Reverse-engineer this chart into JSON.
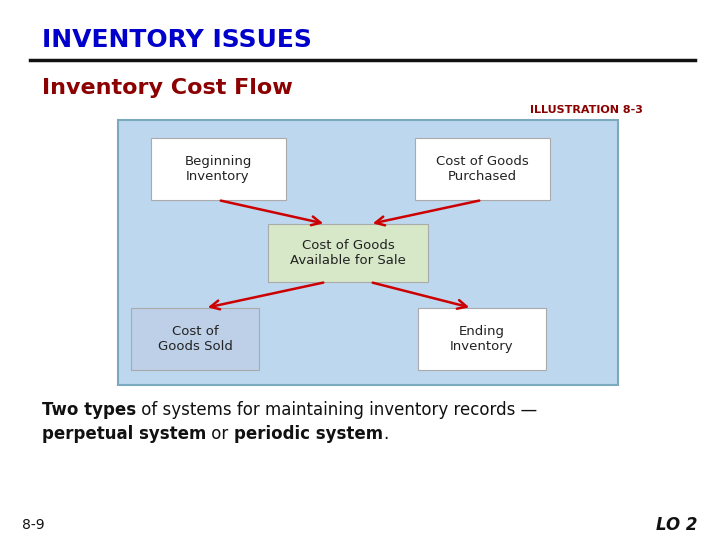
{
  "title": "INVENTORY ISSUES",
  "title_color": "#0000CC",
  "subtitle": "Inventory Cost Flow",
  "subtitle_color": "#8B0000",
  "illustration_label": "ILLUSTRATION 8-3",
  "illustration_color": "#8B0000",
  "bg_color": "#FFFFFF",
  "diagram_bg": "#BDD7EE",
  "diagram_border": "#7BAABF",
  "box_top_left_label": "Beginning\nInventory",
  "box_top_right_label": "Cost of Goods\nPurchased",
  "box_center_label": "Cost of Goods\nAvailable for Sale",
  "box_bot_left_label": "Cost of\nGoods Sold",
  "box_bot_right_label": "Ending\nInventory",
  "box_white_color": "#FFFFFF",
  "box_center_color": "#D6E8C8",
  "box_blue_color": "#BDD0E8",
  "box_border_color": "#AAAAAA",
  "arrow_color": "#CC0000",
  "page_num": "8-9",
  "lo_label": "LO 2",
  "text_color": "#111111",
  "line_color": "#111111"
}
